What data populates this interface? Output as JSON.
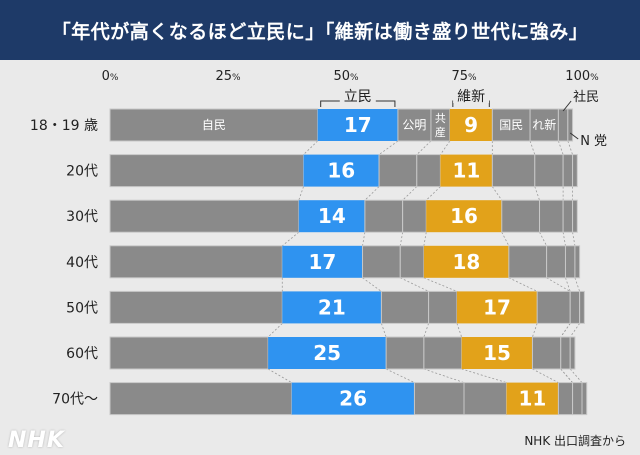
{
  "header": {
    "title": "「年代が高くなるほど立民に」「維新は働き盛り世代に強み」"
  },
  "source": "NHK 出口調査から",
  "logo": "NHK",
  "colors": {
    "background": "#eaeaea",
    "header_bg": "#1e3a68",
    "ldp": "#8a8a8a",
    "cdp": "#2f93f0",
    "ishin": "#e2a21a",
    "other": "#8a8a8a",
    "divider": "#c8c8c8"
  },
  "chart_data": {
    "type": "bar",
    "orientation": "horizontal",
    "stacked": true,
    "x_ticks": [
      {
        "value": 0,
        "label": "0",
        "unit": "%"
      },
      {
        "value": 25,
        "label": "25",
        "unit": "%"
      },
      {
        "value": 50,
        "label": "50",
        "unit": "%"
      },
      {
        "value": 75,
        "label": "75",
        "unit": "%"
      },
      {
        "value": 100,
        "label": "100",
        "unit": "%"
      }
    ],
    "xlim": [
      0,
      100
    ],
    "categories": [
      "18・19 歳",
      "20代",
      "30代",
      "40代",
      "50代",
      "60代",
      "70代〜"
    ],
    "series": [
      {
        "name": "自民",
        "key": "ldp",
        "values": [
          44,
          41,
          40,
          36.5,
          36.5,
          33.5,
          38.5
        ]
      },
      {
        "name": "立民",
        "key": "cdp",
        "values": [
          17,
          16,
          14,
          17,
          21,
          25,
          26
        ]
      },
      {
        "name": "公明",
        "key": "komei",
        "values": [
          7,
          8,
          8,
          8,
          10,
          8,
          10.5
        ]
      },
      {
        "name": "共産",
        "key": "jcp",
        "values": [
          4,
          5,
          5,
          5,
          6,
          8,
          9
        ]
      },
      {
        "name": "維新",
        "key": "ishin",
        "values": [
          9,
          11,
          16,
          18,
          17,
          15,
          11
        ]
      },
      {
        "name": "国民",
        "key": "dpfp",
        "values": [
          8,
          9,
          8,
          8,
          7,
          6,
          3
        ]
      },
      {
        "name": "れ新",
        "key": "reiwa",
        "values": [
          6,
          6,
          5,
          4,
          0,
          0,
          0
        ]
      },
      {
        "name": "社民",
        "key": "sdp",
        "values": [
          2,
          2,
          2,
          2,
          2,
          2,
          2
        ]
      },
      {
        "name": "N 党",
        "key": "nhk",
        "values": [
          1,
          1,
          1,
          1,
          1,
          1,
          1
        ]
      }
    ],
    "bar_labels": {
      "cdp": [
        "17",
        "16",
        "14",
        "17",
        "21",
        "25",
        "26"
      ],
      "ishin": [
        "9",
        "11",
        "16",
        "18",
        "17",
        "15",
        "11"
      ]
    },
    "inline_labels": {
      "ldp": "自民",
      "komei": "公明",
      "jcp": "共産",
      "dpfp": "国民",
      "reiwa": "れ新"
    },
    "callouts": {
      "cdp": "立民",
      "ishin": "維新",
      "sdp": "社民",
      "nhk": "N 党"
    }
  }
}
